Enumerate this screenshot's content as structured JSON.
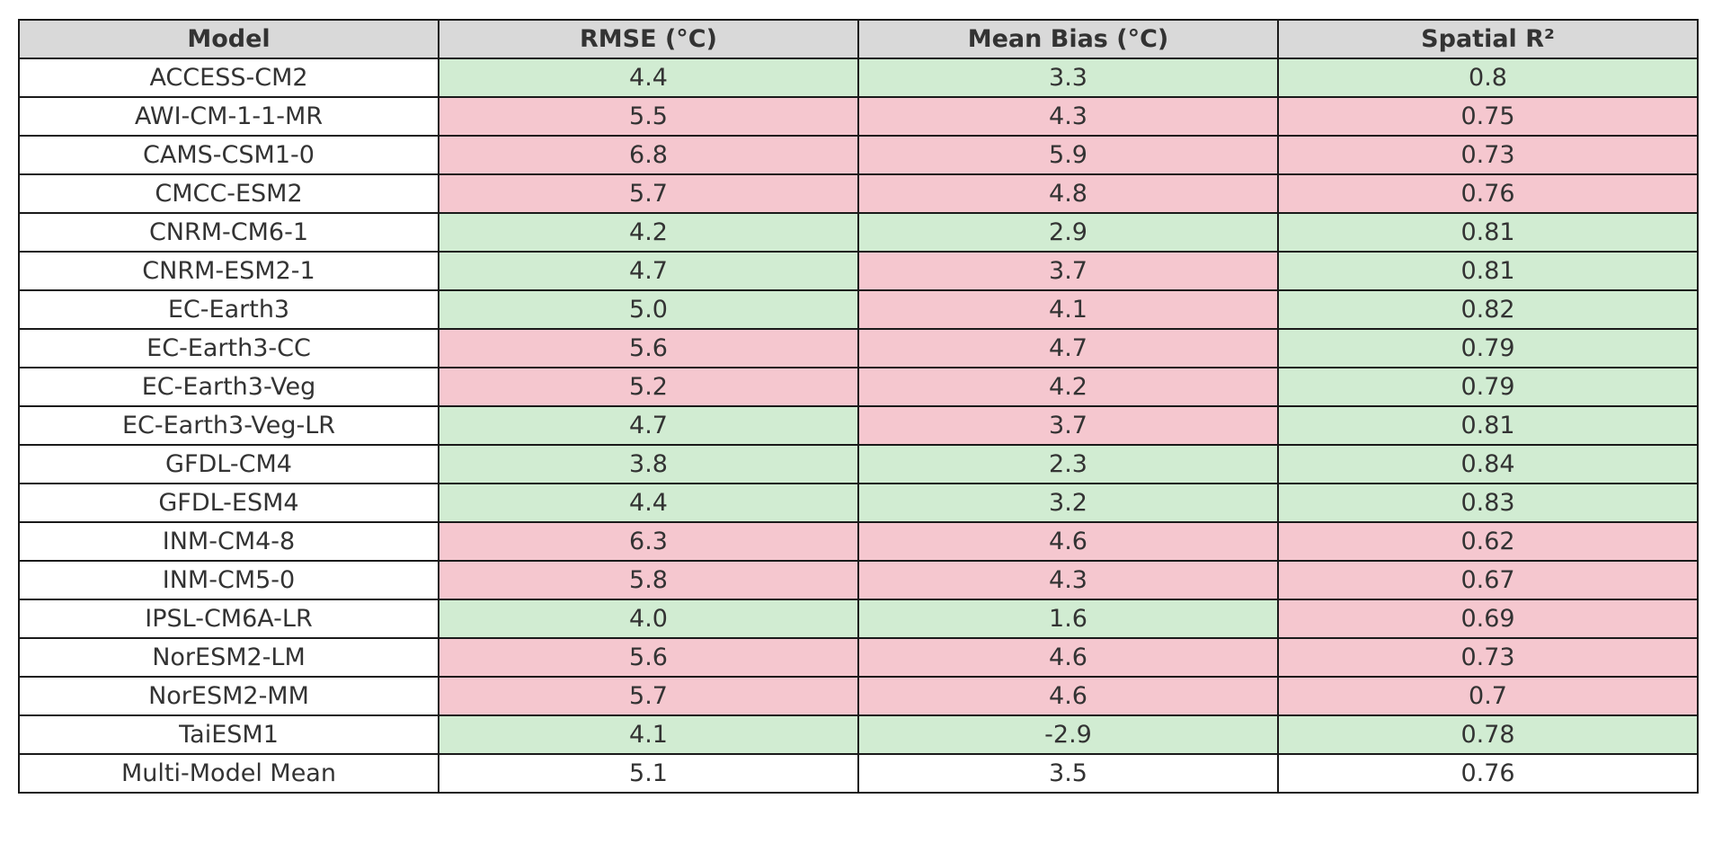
{
  "chart_data": {
    "type": "table",
    "columns": [
      "Model",
      "RMSE (°C)",
      "Mean Bias (°C)",
      "Spatial R²"
    ],
    "rows": [
      {
        "model": "ACCESS-CM2",
        "values": [
          "4.4",
          "3.3",
          "0.8"
        ],
        "status": [
          "good",
          "good",
          "good"
        ]
      },
      {
        "model": "AWI-CM-1-1-MR",
        "values": [
          "5.5",
          "4.3",
          "0.75"
        ],
        "status": [
          "bad",
          "bad",
          "bad"
        ]
      },
      {
        "model": "CAMS-CSM1-0",
        "values": [
          "6.8",
          "5.9",
          "0.73"
        ],
        "status": [
          "bad",
          "bad",
          "bad"
        ]
      },
      {
        "model": "CMCC-ESM2",
        "values": [
          "5.7",
          "4.8",
          "0.76"
        ],
        "status": [
          "bad",
          "bad",
          "bad"
        ]
      },
      {
        "model": "CNRM-CM6-1",
        "values": [
          "4.2",
          "2.9",
          "0.81"
        ],
        "status": [
          "good",
          "good",
          "good"
        ]
      },
      {
        "model": "CNRM-ESM2-1",
        "values": [
          "4.7",
          "3.7",
          "0.81"
        ],
        "status": [
          "good",
          "bad",
          "good"
        ]
      },
      {
        "model": "EC-Earth3",
        "values": [
          "5.0",
          "4.1",
          "0.82"
        ],
        "status": [
          "good",
          "bad",
          "good"
        ]
      },
      {
        "model": "EC-Earth3-CC",
        "values": [
          "5.6",
          "4.7",
          "0.79"
        ],
        "status": [
          "bad",
          "bad",
          "good"
        ]
      },
      {
        "model": "EC-Earth3-Veg",
        "values": [
          "5.2",
          "4.2",
          "0.79"
        ],
        "status": [
          "bad",
          "bad",
          "good"
        ]
      },
      {
        "model": "EC-Earth3-Veg-LR",
        "values": [
          "4.7",
          "3.7",
          "0.81"
        ],
        "status": [
          "good",
          "bad",
          "good"
        ]
      },
      {
        "model": "GFDL-CM4",
        "values": [
          "3.8",
          "2.3",
          "0.84"
        ],
        "status": [
          "good",
          "good",
          "good"
        ]
      },
      {
        "model": "GFDL-ESM4",
        "values": [
          "4.4",
          "3.2",
          "0.83"
        ],
        "status": [
          "good",
          "good",
          "good"
        ]
      },
      {
        "model": "INM-CM4-8",
        "values": [
          "6.3",
          "4.6",
          "0.62"
        ],
        "status": [
          "bad",
          "bad",
          "bad"
        ]
      },
      {
        "model": "INM-CM5-0",
        "values": [
          "5.8",
          "4.3",
          "0.67"
        ],
        "status": [
          "bad",
          "bad",
          "bad"
        ]
      },
      {
        "model": "IPSL-CM6A-LR",
        "values": [
          "4.0",
          "1.6",
          "0.69"
        ],
        "status": [
          "good",
          "good",
          "bad"
        ]
      },
      {
        "model": "NorESM2-LM",
        "values": [
          "5.6",
          "4.6",
          "0.73"
        ],
        "status": [
          "bad",
          "bad",
          "bad"
        ]
      },
      {
        "model": "NorESM2-MM",
        "values": [
          "5.7",
          "4.6",
          "0.7"
        ],
        "status": [
          "bad",
          "bad",
          "bad"
        ]
      },
      {
        "model": "TaiESM1",
        "values": [
          "4.1",
          "-2.9",
          "0.78"
        ],
        "status": [
          "good",
          "good",
          "good"
        ]
      },
      {
        "model": "Multi-Model Mean",
        "values": [
          "5.1",
          "3.5",
          "0.76"
        ],
        "status": [
          "plain",
          "plain",
          "plain"
        ]
      }
    ],
    "colors": {
      "good": "#d1ecd2",
      "bad": "#f5c7cf",
      "header": "#d9d9d9",
      "plain": "#ffffff"
    }
  }
}
